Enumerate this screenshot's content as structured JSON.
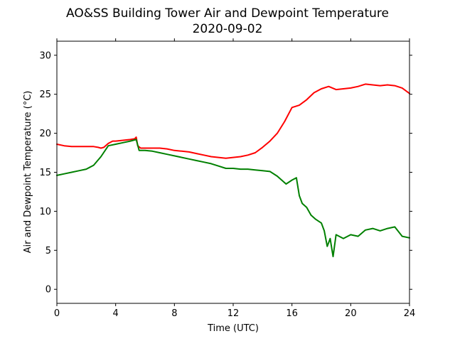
{
  "chart_data": {
    "type": "line",
    "title": "AO&SS Building Tower Air and Dewpoint Temperature",
    "subtitle": "2020-09-02",
    "xlabel": "Time (UTC)",
    "ylabel": "Air and Dewpoint Temperature (°C)",
    "xlim": [
      0,
      24
    ],
    "ylim": [
      -1.8,
      31.8
    ],
    "xticks": [
      0,
      4,
      8,
      12,
      16,
      20,
      24
    ],
    "yticks": [
      0,
      5,
      10,
      15,
      20,
      25,
      30
    ],
    "grid": false,
    "series": [
      {
        "color": "#ff0000",
        "x": [
          0,
          0.5,
          1,
          1.5,
          2,
          2.5,
          2.8,
          3.0,
          3.2,
          3.5,
          3.8,
          4.0,
          4.5,
          5.0,
          5.3,
          5.4,
          5.5,
          5.7,
          6.0,
          6.5,
          7.0,
          7.5,
          8.0,
          8.5,
          9.0,
          9.5,
          10.0,
          10.5,
          11.0,
          11.5,
          12.0,
          12.5,
          13.0,
          13.5,
          14.0,
          14.5,
          15.0,
          15.5,
          16.0,
          16.5,
          17.0,
          17.5,
          18.0,
          18.5,
          19.0,
          19.5,
          20.0,
          20.5,
          21.0,
          21.5,
          22.0,
          22.5,
          23.0,
          23.5,
          24.0
        ],
        "values": [
          18.6,
          18.4,
          18.3,
          18.3,
          18.3,
          18.3,
          18.2,
          18.1,
          18.2,
          18.7,
          19.0,
          19.0,
          19.1,
          19.2,
          19.3,
          19.5,
          18.4,
          18.1,
          18.1,
          18.1,
          18.1,
          18.0,
          17.8,
          17.7,
          17.6,
          17.4,
          17.2,
          17.0,
          16.9,
          16.8,
          16.9,
          17.0,
          17.2,
          17.5,
          18.2,
          19.0,
          20.0,
          21.5,
          23.3,
          23.6,
          24.3,
          25.2,
          25.7,
          26.0,
          25.6,
          25.7,
          25.8,
          26.0,
          26.3,
          26.2,
          26.1,
          26.2,
          26.1,
          25.8,
          25.1
        ]
      },
      {
        "color": "#008000",
        "x": [
          0,
          0.5,
          1,
          1.5,
          2,
          2.5,
          3.0,
          3.5,
          4.0,
          4.5,
          5.0,
          5.4,
          5.6,
          6.0,
          6.5,
          7.0,
          7.5,
          8.0,
          8.5,
          9.0,
          9.5,
          10.0,
          10.5,
          11.0,
          11.5,
          12.0,
          12.5,
          13.0,
          13.5,
          14.0,
          14.5,
          15.0,
          15.3,
          15.6,
          16.0,
          16.3,
          16.5,
          16.7,
          17.0,
          17.3,
          17.6,
          18.0,
          18.2,
          18.4,
          18.6,
          18.8,
          19.0,
          19.5,
          20.0,
          20.5,
          21.0,
          21.5,
          22.0,
          22.5,
          23.0,
          23.5,
          24.0
        ],
        "values": [
          14.6,
          14.8,
          15.0,
          15.2,
          15.4,
          15.9,
          17.0,
          18.4,
          18.6,
          18.8,
          19.0,
          19.2,
          17.8,
          17.8,
          17.7,
          17.5,
          17.3,
          17.1,
          16.9,
          16.7,
          16.5,
          16.3,
          16.1,
          15.8,
          15.5,
          15.5,
          15.4,
          15.4,
          15.3,
          15.2,
          15.1,
          14.5,
          14.0,
          13.5,
          14.0,
          14.3,
          12.0,
          11.0,
          10.5,
          9.5,
          9.0,
          8.5,
          7.5,
          5.5,
          6.5,
          4.2,
          7.0,
          6.5,
          7.0,
          6.8,
          7.6,
          7.8,
          7.5,
          7.8,
          8.0,
          6.8,
          6.6
        ]
      }
    ]
  }
}
